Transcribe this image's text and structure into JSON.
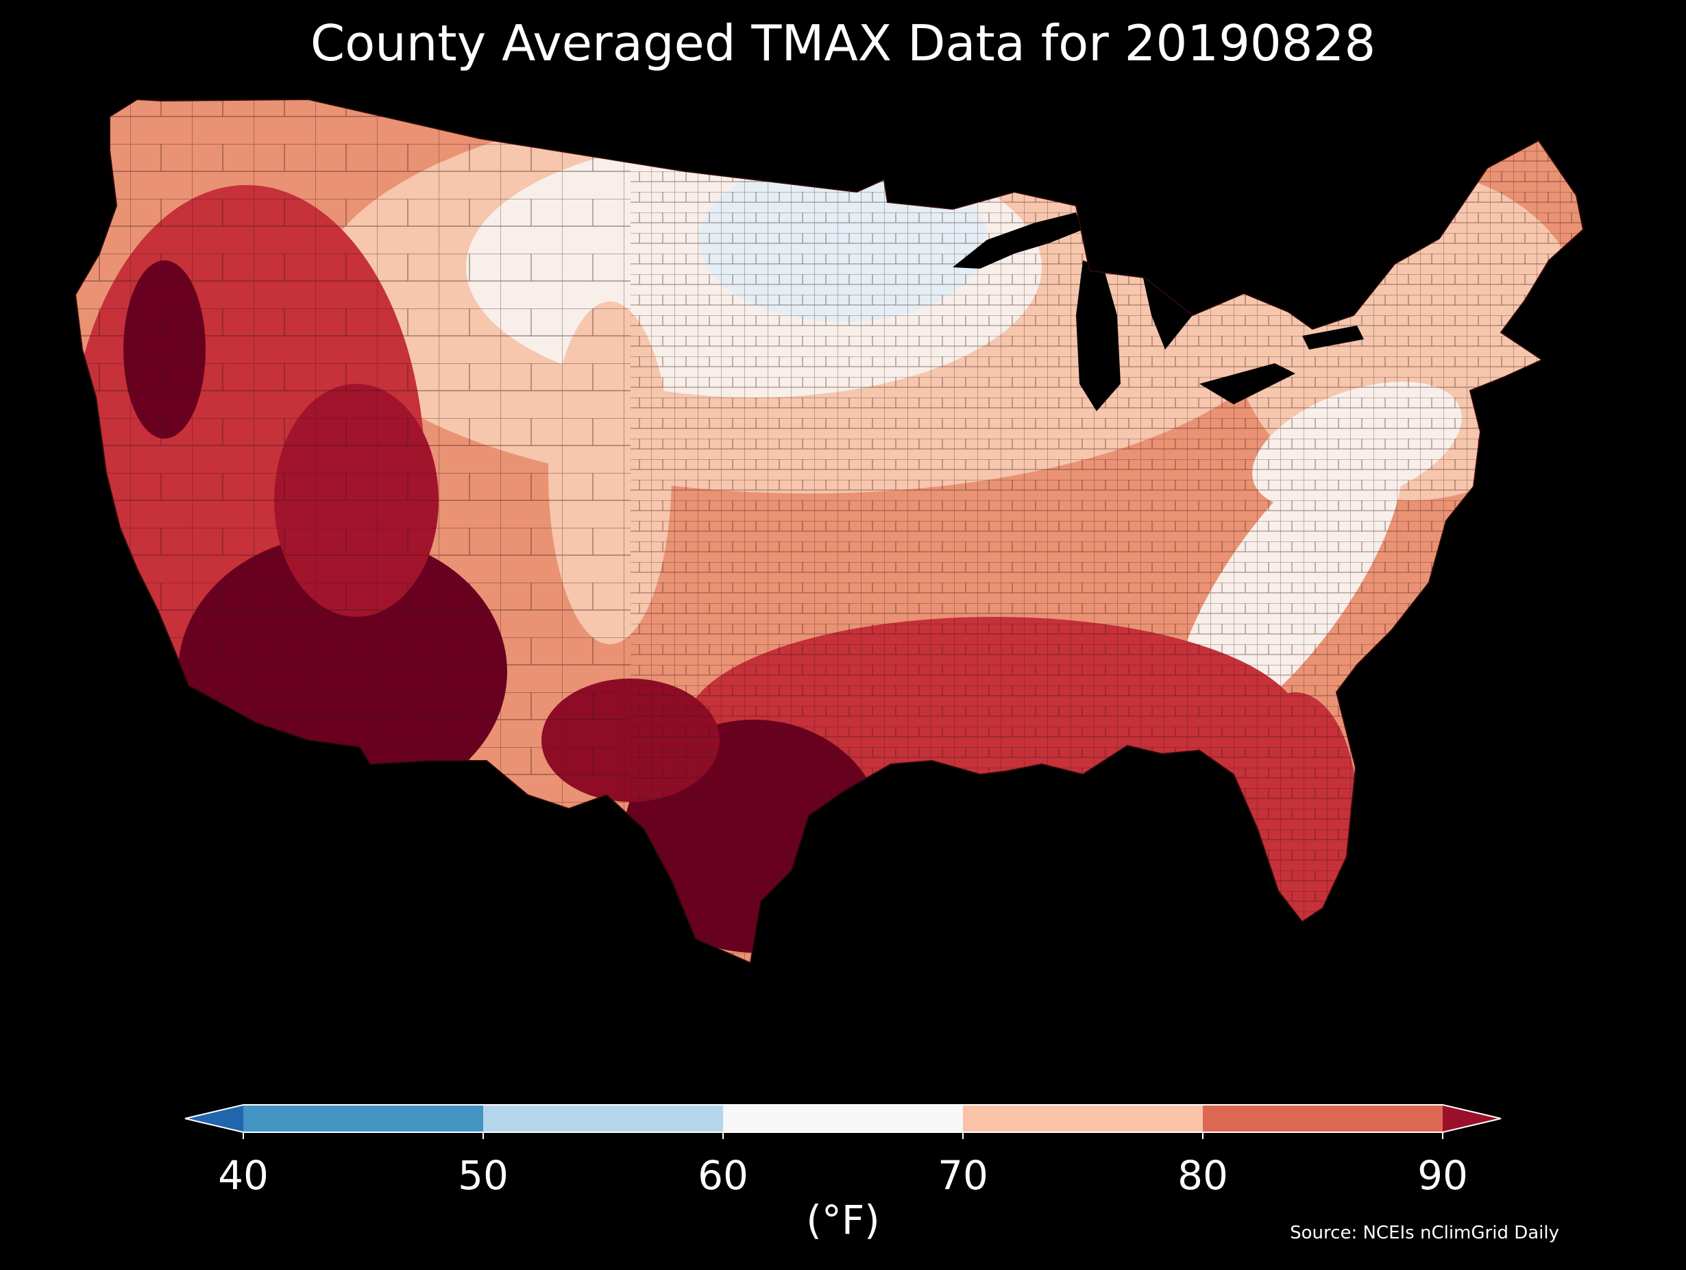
{
  "title": "County Averaged TMAX Data for 20190828",
  "source": "Source: NCEIs nClimGrid Daily",
  "legend": {
    "units": "(°F)",
    "ticks": [
      "40",
      "50",
      "60",
      "70",
      "80",
      "90"
    ],
    "tick_values": [
      40,
      50,
      60,
      70,
      80,
      90
    ],
    "extend": "both",
    "bins": [
      {
        "from": null,
        "to": 40,
        "color": "#2166ac"
      },
      {
        "from": 40,
        "to": 50,
        "color": "#4393c3"
      },
      {
        "from": 50,
        "to": 60,
        "color": "#b5d6ea"
      },
      {
        "from": 60,
        "to": 70,
        "color": "#f7f7f7"
      },
      {
        "from": 70,
        "to": 80,
        "color": "#fac3a8"
      },
      {
        "from": 80,
        "to": 90,
        "color": "#dd6852"
      },
      {
        "from": 90,
        "to": null,
        "color": "#9b1028"
      }
    ]
  },
  "map": {
    "region": "Contiguous United States",
    "unit": "county",
    "colors": {
      "background": "#000000",
      "water": "#000000",
      "county_border": "#3a1a14",
      "coldest": "#e6eef5",
      "cool": "#f8efea",
      "mild": "#f6c6ad",
      "warm": "#ea9274",
      "hot": "#c6313a",
      "hottest": "#6a0020"
    }
  }
}
